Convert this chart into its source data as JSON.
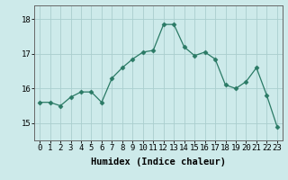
{
  "x": [
    0,
    1,
    2,
    3,
    4,
    5,
    6,
    7,
    8,
    9,
    10,
    11,
    12,
    13,
    14,
    15,
    16,
    17,
    18,
    19,
    20,
    21,
    22,
    23
  ],
  "y": [
    15.6,
    15.6,
    15.5,
    15.75,
    15.9,
    15.9,
    15.6,
    16.3,
    16.6,
    16.85,
    17.05,
    17.1,
    17.85,
    17.85,
    17.2,
    16.95,
    17.05,
    16.85,
    16.1,
    16.0,
    16.2,
    16.6,
    15.8,
    14.9
  ],
  "line_color": "#2a7a65",
  "marker": "D",
  "marker_size": 2.5,
  "bg_color": "#cdeaea",
  "grid_color": "#aacece",
  "xlabel": "Humidex (Indice chaleur)",
  "xlabel_fontsize": 7.5,
  "tick_fontsize": 6.5,
  "ylim": [
    14.5,
    18.4
  ],
  "yticks": [
    15,
    16,
    17,
    18
  ],
  "xticks": [
    0,
    1,
    2,
    3,
    4,
    5,
    6,
    7,
    8,
    9,
    10,
    11,
    12,
    13,
    14,
    15,
    16,
    17,
    18,
    19,
    20,
    21,
    22,
    23
  ]
}
